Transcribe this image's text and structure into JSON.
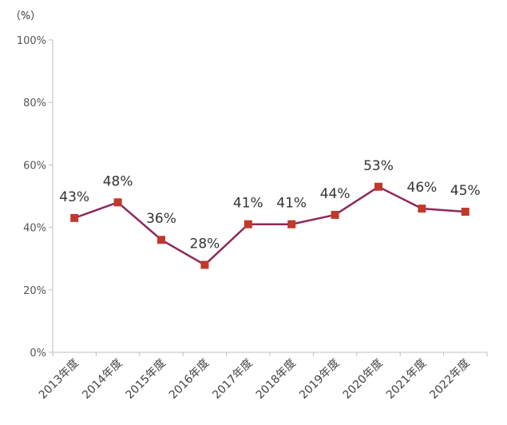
{
  "chart_data": {
    "type": "line",
    "unit_label": "（%）",
    "title": "",
    "xlabel": "",
    "ylabel": "",
    "categories": [
      "2013年度",
      "2014年度",
      "2015年度",
      "2016年度",
      "2017年度",
      "2018年度",
      "2019年度",
      "2020年度",
      "2021年度",
      "2022年度"
    ],
    "yticks": [
      "0%",
      "20%",
      "40%",
      "60%",
      "80%",
      "100%"
    ],
    "ylim": [
      0,
      100
    ],
    "grid": false,
    "legend": "none",
    "series": [
      {
        "values": [
          43,
          48,
          36,
          28,
          41,
          41,
          44,
          53,
          46,
          45
        ],
        "labels": [
          "43%",
          "48%",
          "36%",
          "28%",
          "41%",
          "41%",
          "44%",
          "53%",
          "46%",
          "45%"
        ],
        "color": "#8B2A5C",
        "marker_color": "#C0392B"
      }
    ]
  }
}
